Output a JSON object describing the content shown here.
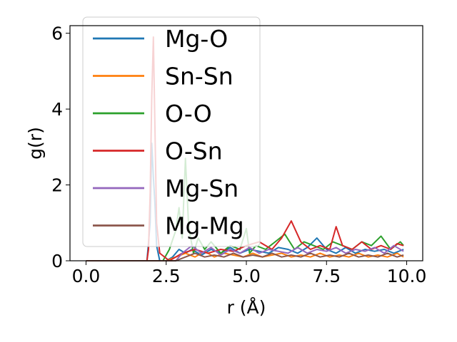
{
  "chart_data": {
    "type": "line",
    "title": "",
    "xlabel": "r (Å)",
    "ylabel": "g(r)",
    "xlim": [
      -0.5,
      10.5
    ],
    "ylim": [
      0,
      6.2
    ],
    "xticks": [
      0.0,
      2.5,
      5.0,
      7.5,
      10.0
    ],
    "xtick_labels": [
      "0.0",
      "2.5",
      "5.0",
      "7.5",
      "10.0"
    ],
    "yticks": [
      0,
      2,
      4,
      6
    ],
    "ytick_labels": [
      "0",
      "2",
      "4",
      "6"
    ],
    "grid": false,
    "legend_position": "upper-left",
    "series": [
      {
        "name": "Mg-O",
        "color": "#1f77b4",
        "x": [
          0.0,
          1.9,
          2.0,
          2.05,
          2.1,
          2.15,
          2.2,
          2.3,
          2.5,
          2.7,
          2.9,
          3.1,
          3.3,
          3.6,
          3.9,
          4.2,
          4.5,
          4.8,
          5.1,
          5.4,
          5.7,
          6.0,
          6.3,
          6.6,
          6.9,
          7.2,
          7.5,
          7.8,
          8.1,
          8.4,
          8.7,
          9.0,
          9.3,
          9.6,
          9.9
        ],
        "y": [
          0,
          0,
          1.0,
          3.1,
          2.2,
          1.5,
          0.4,
          0,
          0,
          0.1,
          0.3,
          0.2,
          0.3,
          0.15,
          0.3,
          0.2,
          0.35,
          0.2,
          0.3,
          0.25,
          0.2,
          0.35,
          0.3,
          0.2,
          0.35,
          0.6,
          0.3,
          0.2,
          0.35,
          0.2,
          0.3,
          0.25,
          0.3,
          0.2,
          0.3
        ]
      },
      {
        "name": "Sn-Sn",
        "color": "#ff7f0e",
        "x": [
          0.0,
          2.5,
          2.8,
          3.1,
          3.4,
          3.7,
          4.0,
          4.3,
          4.6,
          4.9,
          5.2,
          5.5,
          5.8,
          6.1,
          6.4,
          6.7,
          7.0,
          7.3,
          7.6,
          7.9,
          8.2,
          8.5,
          8.8,
          9.1,
          9.4,
          9.7,
          9.9
        ],
        "y": [
          0,
          0,
          0.1,
          0.2,
          0.1,
          0.25,
          0.1,
          0.2,
          0.15,
          0.1,
          0.2,
          0.1,
          0.15,
          0.2,
          0.1,
          0.15,
          0.1,
          0.2,
          0.1,
          0.15,
          0.1,
          0.2,
          0.1,
          0.15,
          0.1,
          0.2,
          0.1
        ]
      },
      {
        "name": "O-O",
        "color": "#2ca02c",
        "x": [
          0.0,
          2.4,
          2.6,
          2.8,
          2.9,
          3.0,
          3.1,
          3.2,
          3.35,
          3.5,
          3.7,
          3.9,
          4.2,
          4.5,
          4.8,
          5.0,
          5.1,
          5.3,
          5.6,
          5.9,
          6.2,
          6.5,
          6.8,
          7.1,
          7.4,
          7.7,
          8.0,
          8.3,
          8.6,
          8.9,
          9.2,
          9.5,
          9.8,
          9.9
        ],
        "y": [
          0,
          0,
          0.3,
          0.8,
          1.4,
          0.6,
          2.7,
          0.9,
          0.2,
          0.6,
          0.3,
          0.5,
          0.2,
          0.4,
          0.3,
          0.85,
          0.2,
          0.4,
          0.3,
          0.5,
          0.7,
          0.3,
          0.5,
          0.4,
          0.3,
          0.5,
          0.4,
          0.3,
          0.5,
          0.4,
          0.65,
          0.3,
          0.5,
          0.4
        ]
      },
      {
        "name": "O-Sn",
        "color": "#d62728",
        "x": [
          0.0,
          1.9,
          1.95,
          2.0,
          2.05,
          2.1,
          2.15,
          2.2,
          2.3,
          2.6,
          3.0,
          3.4,
          3.8,
          4.2,
          4.6,
          5.0,
          5.4,
          5.8,
          6.1,
          6.4,
          6.7,
          7.0,
          7.3,
          7.6,
          7.8,
          8.0,
          8.3,
          8.6,
          8.9,
          9.2,
          9.5,
          9.7,
          9.9
        ],
        "y": [
          0,
          0,
          0.3,
          1.8,
          4.3,
          5.9,
          3.5,
          1.0,
          0.2,
          0,
          0.2,
          0.3,
          0.2,
          0.3,
          0.25,
          0.4,
          0.5,
          0.3,
          0.6,
          1.05,
          0.5,
          0.3,
          0.4,
          0.3,
          0.9,
          0.4,
          0.3,
          0.5,
          0.3,
          0.4,
          0.3,
          0.45,
          0.4
        ]
      },
      {
        "name": "Mg-Sn",
        "color": "#9467bd",
        "x": [
          0.0,
          2.8,
          3.0,
          3.3,
          3.6,
          3.9,
          4.2,
          4.5,
          4.8,
          5.1,
          5.4,
          5.7,
          6.0,
          6.3,
          6.6,
          6.9,
          7.2,
          7.5,
          7.8,
          8.1,
          8.4,
          8.7,
          9.0,
          9.3,
          9.6,
          9.9
        ],
        "y": [
          0,
          0,
          0.2,
          0.4,
          0.2,
          0.35,
          0.15,
          0.3,
          0.2,
          0.35,
          0.2,
          0.3,
          0.25,
          0.2,
          0.35,
          0.2,
          0.3,
          0.25,
          0.35,
          0.2,
          0.3,
          0.25,
          0.35,
          0.2,
          0.4,
          0.25
        ]
      },
      {
        "name": "Mg-Mg",
        "color": "#8c564b",
        "x": [
          0.0,
          2.8,
          3.1,
          3.4,
          3.7,
          4.0,
          4.3,
          4.6,
          4.9,
          5.2,
          5.5,
          5.8,
          6.1,
          6.4,
          6.7,
          7.0,
          7.3,
          7.6,
          7.9,
          8.2,
          8.5,
          8.8,
          9.1,
          9.4,
          9.7,
          9.9
        ],
        "y": [
          0,
          0,
          0.1,
          0.2,
          0.1,
          0.15,
          0.1,
          0.2,
          0.1,
          0.15,
          0.1,
          0.2,
          0.1,
          0.15,
          0.1,
          0.2,
          0.1,
          0.15,
          0.1,
          0.2,
          0.1,
          0.15,
          0.1,
          0.2,
          0.1,
          0.15
        ]
      }
    ]
  }
}
